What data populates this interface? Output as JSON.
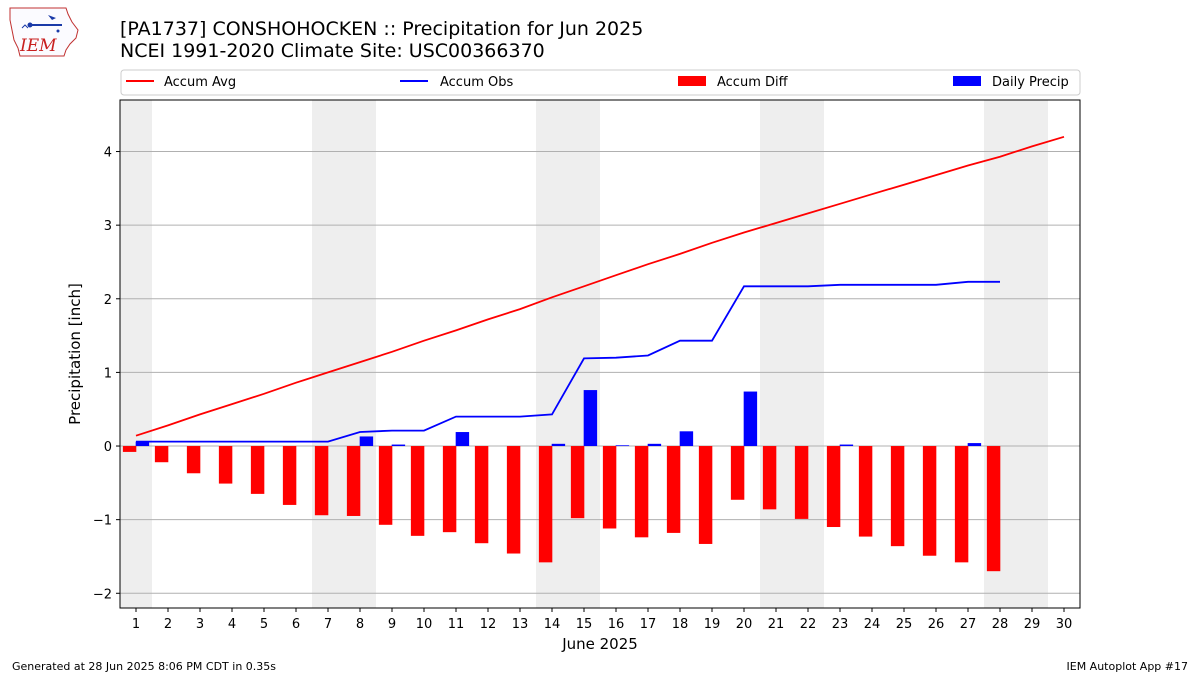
{
  "title": "[PA1737] CONSHOHOCKEN :: Precipitation for Jun 2025",
  "subtitle": "NCEI 1991-2020 Climate Site: USC00366370",
  "logo_text": "IEM",
  "footer_left": "Generated at 28 Jun 2025 8:06 PM CDT in 0.35s",
  "footer_right": "IEM Autoplot App #17",
  "colors": {
    "accum_avg": "#ff0000",
    "accum_obs": "#0000ff",
    "accum_diff": "#ff0000",
    "daily_precip": "#0000ff",
    "weekend_shade": "#eeeeee",
    "grid": "#b0b0b0"
  },
  "chart_data": {
    "type": "bar",
    "xlabel": "June 2025",
    "ylabel": "Precipitation [inch]",
    "xlim": [
      0.5,
      30.5
    ],
    "ylim": [
      -2.2,
      4.7
    ],
    "x_ticks": [
      1,
      2,
      3,
      4,
      5,
      6,
      7,
      8,
      9,
      10,
      11,
      12,
      13,
      14,
      15,
      16,
      17,
      18,
      19,
      20,
      21,
      22,
      23,
      24,
      25,
      26,
      27,
      28,
      29,
      30
    ],
    "y_ticks": [
      -2,
      -1,
      0,
      1,
      2,
      3,
      4
    ],
    "grid": "horizontal",
    "legend_position": "top",
    "shaded_weekend_days": [
      1,
      7,
      8,
      14,
      15,
      21,
      22,
      28,
      29
    ],
    "series": [
      {
        "name": "Accum Avg",
        "type": "line",
        "x": [
          1,
          2,
          3,
          4,
          5,
          6,
          7,
          8,
          9,
          10,
          11,
          12,
          13,
          14,
          15,
          16,
          17,
          18,
          19,
          20,
          21,
          22,
          23,
          24,
          25,
          26,
          27,
          28,
          29,
          30
        ],
        "values": [
          0.14,
          0.28,
          0.43,
          0.57,
          0.71,
          0.86,
          1.0,
          1.14,
          1.28,
          1.43,
          1.57,
          1.72,
          1.86,
          2.02,
          2.17,
          2.32,
          2.47,
          2.61,
          2.76,
          2.9,
          3.03,
          3.16,
          3.29,
          3.42,
          3.55,
          3.68,
          3.81,
          3.93,
          4.07,
          4.2
        ]
      },
      {
        "name": "Accum Obs",
        "type": "line",
        "x": [
          1,
          2,
          3,
          4,
          5,
          6,
          7,
          8,
          9,
          10,
          11,
          12,
          13,
          14,
          15,
          16,
          17,
          18,
          19,
          20,
          21,
          22,
          23,
          24,
          25,
          26,
          27,
          28
        ],
        "values": [
          0.06,
          0.06,
          0.06,
          0.06,
          0.06,
          0.06,
          0.06,
          0.19,
          0.21,
          0.21,
          0.4,
          0.4,
          0.4,
          0.43,
          1.19,
          1.2,
          1.23,
          1.43,
          1.43,
          2.17,
          2.17,
          2.17,
          2.19,
          2.19,
          2.19,
          2.19,
          2.23,
          2.23
        ]
      },
      {
        "name": "Accum Diff",
        "type": "bar",
        "x": [
          1,
          2,
          3,
          4,
          5,
          6,
          7,
          8,
          9,
          10,
          11,
          12,
          13,
          14,
          15,
          16,
          17,
          18,
          19,
          20,
          21,
          22,
          23,
          24,
          25,
          26,
          27,
          28
        ],
        "values": [
          -0.08,
          -0.22,
          -0.37,
          -0.51,
          -0.65,
          -0.8,
          -0.94,
          -0.95,
          -1.07,
          -1.22,
          -1.17,
          -1.32,
          -1.46,
          -1.58,
          -0.98,
          -1.12,
          -1.24,
          -1.18,
          -1.33,
          -0.73,
          -0.86,
          -0.99,
          -1.1,
          -1.23,
          -1.36,
          -1.49,
          -1.58,
          -1.7
        ]
      },
      {
        "name": "Daily Precip",
        "type": "bar",
        "x": [
          1,
          2,
          3,
          4,
          5,
          6,
          7,
          8,
          9,
          10,
          11,
          12,
          13,
          14,
          15,
          16,
          17,
          18,
          19,
          20,
          21,
          22,
          23,
          24,
          25,
          26,
          27,
          28
        ],
        "values": [
          0.06,
          0,
          0,
          0,
          0,
          0,
          0,
          0.13,
          0.02,
          0,
          0.19,
          0,
          0,
          0.03,
          0.76,
          0.01,
          0.03,
          0.2,
          0,
          0.74,
          0,
          0,
          0.02,
          0,
          0,
          0,
          0.04,
          0
        ]
      }
    ]
  }
}
